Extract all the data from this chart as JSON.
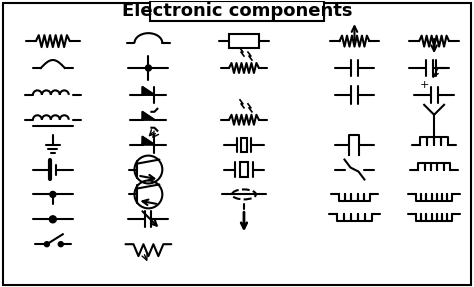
{
  "title": "Electronic components",
  "symbol_color": "#000000",
  "fig_width": 4.74,
  "fig_height": 2.87,
  "title_fontsize": 13,
  "title_fontweight": "bold"
}
